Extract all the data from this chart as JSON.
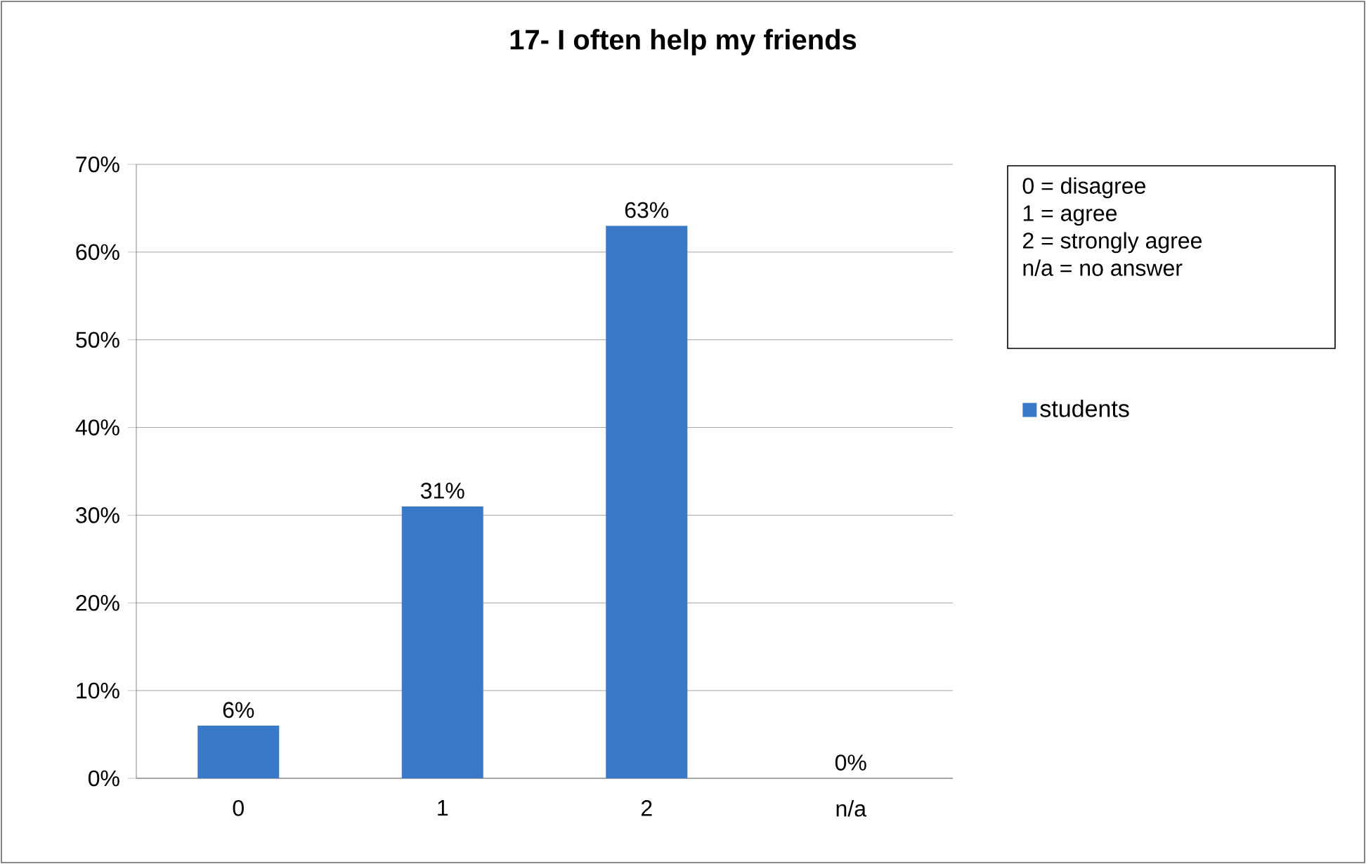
{
  "chart_data": {
    "type": "bar",
    "title": "17- I often help my friends",
    "categories": [
      "0",
      "1",
      "2",
      "n/a"
    ],
    "series": [
      {
        "name": "students",
        "color": "#3a78c8",
        "values": [
          6,
          31,
          63,
          0
        ],
        "value_labels": [
          "6%",
          "31%",
          "63%",
          "0%"
        ]
      }
    ],
    "ylim": [
      0,
      70
    ],
    "yticks": [
      {
        "value": 0,
        "label": "0%"
      },
      {
        "value": 10,
        "label": "10%"
      },
      {
        "value": 20,
        "label": "20%"
      },
      {
        "value": 30,
        "label": "30%"
      },
      {
        "value": 40,
        "label": "40%"
      },
      {
        "value": 50,
        "label": "50%"
      },
      {
        "value": 60,
        "label": "60%"
      },
      {
        "value": 70,
        "label": "70%"
      }
    ],
    "grid": "y",
    "legend": "right",
    "annotations": [
      "0 = disagree",
      "1 = agree",
      "2 = strongly agree",
      "n/a = no answer"
    ]
  }
}
